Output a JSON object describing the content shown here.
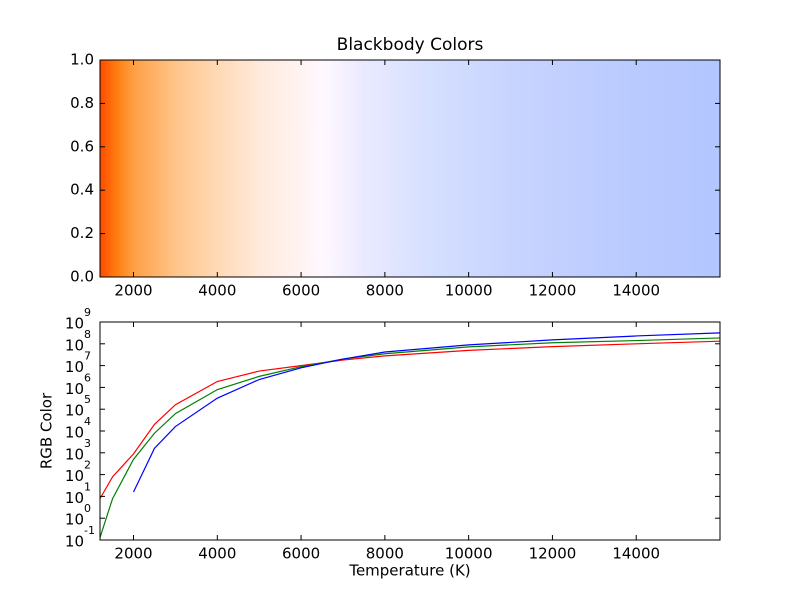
{
  "chart_data": [
    {
      "type": "gradient",
      "title": "Blackbody Colors",
      "stops": [
        {
          "x": 1200,
          "color": "#ff4a00"
        },
        {
          "x": 1600,
          "color": "#ff7e10"
        },
        {
          "x": 2000,
          "color": "#ff9f44"
        },
        {
          "x": 3000,
          "color": "#ffc48a"
        },
        {
          "x": 4000,
          "color": "#ffd9b6"
        },
        {
          "x": 5000,
          "color": "#ffeadb"
        },
        {
          "x": 6500,
          "color": "#fff8fe"
        },
        {
          "x": 7500,
          "color": "#eaeaff"
        },
        {
          "x": 9000,
          "color": "#d6e0ff"
        },
        {
          "x": 11000,
          "color": "#c8d4ff"
        },
        {
          "x": 14000,
          "color": "#b9caff"
        },
        {
          "x": 16000,
          "color": "#b3c6ff"
        }
      ],
      "xlim": [
        1200,
        16000
      ],
      "xticks": [
        2000,
        4000,
        6000,
        8000,
        10000,
        12000,
        14000
      ],
      "ylim": [
        0,
        1
      ],
      "yticks": [
        {
          "value": 0,
          "label": "0.0"
        },
        0.2,
        0.4,
        0.6,
        0.8,
        {
          "value": 1,
          "label": "1.0"
        }
      ]
    },
    {
      "type": "line",
      "x_label": "Temperature (K)",
      "y_label": "RGB Color",
      "yscale": "log",
      "x": [
        1200,
        1500,
        2000,
        2500,
        3000,
        4000,
        5000,
        6000,
        7000,
        8000,
        10000,
        12000,
        14000,
        16000
      ],
      "series": [
        {
          "name": "R",
          "color": "#ff0000",
          "values": [
            7.9,
            79,
            890,
            20000,
            160000,
            1860000,
            5600000,
            10000000,
            18000000,
            28000000,
            50000000,
            74000000,
            100000000,
            132000000
          ]
        },
        {
          "name": "G",
          "color": "#008000",
          "values": [
            0.13,
            7.9,
            500,
            7900,
            63000,
            790000,
            3200000,
            8900000,
            20000000,
            35000000,
            72000000,
            112000000,
            141000000,
            186000000
          ]
        },
        {
          "name": "B",
          "color": "#0000ff",
          "values": [
            null,
            null,
            16,
            1600,
            16000,
            320000,
            2300000,
            7900000,
            20000000,
            42000000,
            89000000,
            151000000,
            229000000,
            316000000
          ]
        }
      ],
      "xlim": [
        1200,
        16000
      ],
      "xticks": [
        2000,
        4000,
        6000,
        8000,
        10000,
        12000,
        14000
      ],
      "ylim": [
        0.1,
        1000000000
      ],
      "yticks": [
        {
          "value": 0.1,
          "label": "10",
          "exponent": "-1"
        },
        {
          "value": 1,
          "label": "10",
          "exponent": "0"
        },
        {
          "value": 10,
          "label": "10",
          "exponent": "1"
        },
        {
          "value": 100,
          "label": "10",
          "exponent": "2"
        },
        {
          "value": 1000,
          "label": "10",
          "exponent": "3"
        },
        {
          "value": 10000,
          "label": "10",
          "exponent": "4"
        },
        {
          "value": 100000,
          "label": "10",
          "exponent": "5"
        },
        {
          "value": 1000000,
          "label": "10",
          "exponent": "6"
        },
        {
          "value": 10000000,
          "label": "10",
          "exponent": "7"
        },
        {
          "value": 100000000,
          "label": "10",
          "exponent": "8"
        },
        {
          "value": 1000000000,
          "label": "10",
          "exponent": "9"
        }
      ]
    }
  ]
}
